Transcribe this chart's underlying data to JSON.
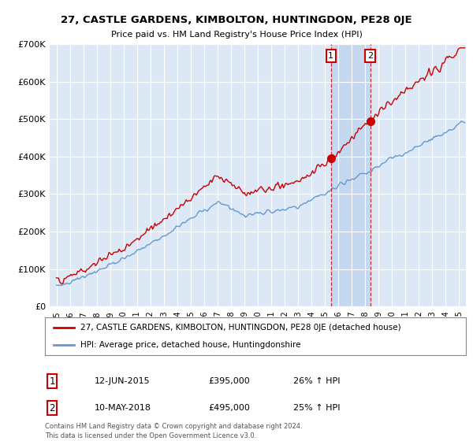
{
  "title": "27, CASTLE GARDENS, KIMBOLTON, HUNTINGDON, PE28 0JE",
  "subtitle": "Price paid vs. HM Land Registry's House Price Index (HPI)",
  "red_label": "27, CASTLE GARDENS, KIMBOLTON, HUNTINGDON, PE28 0JE (detached house)",
  "blue_label": "HPI: Average price, detached house, Huntingdonshire",
  "sale1_date": "12-JUN-2015",
  "sale1_price": 395000,
  "sale1_hpi": "26% ↑ HPI",
  "sale1_year": 2015.45,
  "sale2_date": "10-MAY-2018",
  "sale2_price": 495000,
  "sale2_hpi": "25% ↑ HPI",
  "sale2_year": 2018.37,
  "footer": "Contains HM Land Registry data © Crown copyright and database right 2024.\nThis data is licensed under the Open Government Licence v3.0.",
  "ylim": [
    0,
    700000
  ],
  "yticks": [
    0,
    100000,
    200000,
    300000,
    400000,
    500000,
    600000,
    700000
  ],
  "ytick_labels": [
    "£0",
    "£100K",
    "£200K",
    "£300K",
    "£400K",
    "£500K",
    "£600K",
    "£700K"
  ],
  "xlim_start": 1994.5,
  "xlim_end": 2025.5,
  "background_color": "#dce8f5",
  "plot_bg_color": "#dce8f5",
  "highlight_color": "#c5d8f0",
  "red_color": "#cc0000",
  "blue_color": "#6699cc",
  "grid_color": "#ffffff"
}
